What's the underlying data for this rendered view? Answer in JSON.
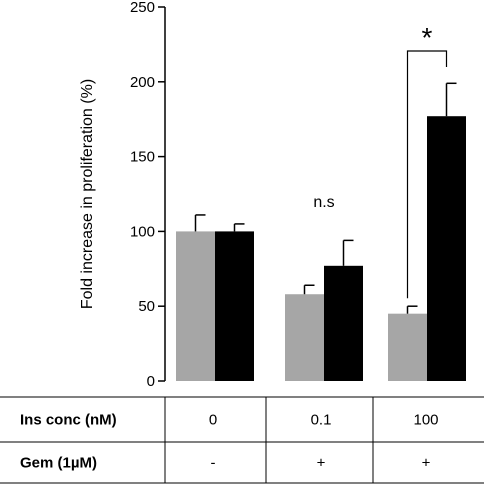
{
  "chart_data": {
    "type": "bar",
    "title": "",
    "xlabel": "",
    "ylabel": "Fold increase in proliferation (%)",
    "ylim": [
      0,
      250
    ],
    "yticks": [
      0,
      50,
      100,
      150,
      200,
      250
    ],
    "grid": false,
    "categories": [
      "0",
      "0.1",
      "100"
    ],
    "series": [
      {
        "color": "#a6a6a6",
        "values": [
          100,
          58,
          45
        ],
        "errors": [
          11,
          6,
          5
        ]
      },
      {
        "color": "#000000",
        "values": [
          100,
          77,
          177
        ],
        "errors": [
          5,
          17,
          22
        ]
      }
    ],
    "annotations": [
      {
        "text": "n.s",
        "category_index": 1
      },
      {
        "text": "*",
        "category_index": 2,
        "bracket": true
      }
    ]
  },
  "table": {
    "rows": [
      {
        "header": "Ins conc (nM)",
        "cells": [
          "0",
          "0.1",
          "100"
        ]
      },
      {
        "header": "Gem (1µM)",
        "cells": [
          "-",
          "+",
          "+"
        ]
      }
    ]
  }
}
